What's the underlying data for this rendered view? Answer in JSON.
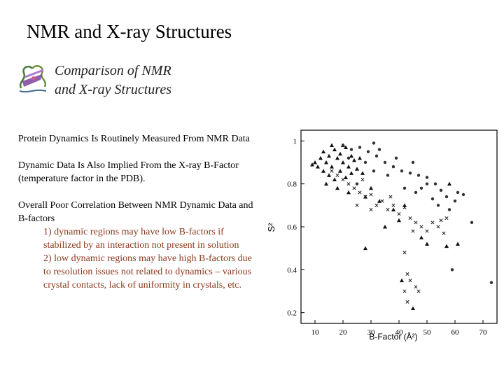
{
  "slide": {
    "title": "NMR and X-ray Structures",
    "subtitle_line1": "Comparison of NMR",
    "subtitle_line2": "and X-ray Structures",
    "paragraph1": "Protein Dynamics Is Routinely Measured From NMR Data",
    "paragraph2": "Dynamic Data Is Also Implied From the X-ray B-Factor (temperature factor in the PDB).",
    "paragraph3": "Overall Poor Correlation Between NMR Dynamic Data and B-factors",
    "point1": "1) dynamic regions may have low B-factors if stabilized by an interaction not present in solution",
    "point2": "2) low dynamic regions may have high B-factors due to resolution issues not related to dynamics – various crystal contacts, lack of uniformity in crystals, etc.",
    "logo_icon": "protein-ribbon-icon",
    "accent_color": "#8b3a1e"
  },
  "chart_data": {
    "type": "scatter",
    "title": "",
    "xlabel": "B-Factor (Å²)",
    "ylabel": "S²",
    "xlim": [
      5,
      75
    ],
    "ylim": [
      0.15,
      1.05
    ],
    "xticks": [
      "10",
      "20",
      "30",
      "40",
      "50",
      "60",
      "70"
    ],
    "yticks": [
      "0.2",
      "0.4",
      "0.6",
      "0.8",
      "1"
    ],
    "series": [
      {
        "marker": "triangle",
        "points": [
          [
            9,
            0.89
          ],
          [
            10,
            0.9
          ],
          [
            11,
            0.88
          ],
          [
            12,
            0.92
          ],
          [
            13,
            0.95
          ],
          [
            14,
            0.9
          ],
          [
            15,
            0.93
          ],
          [
            16,
            0.88
          ],
          [
            17,
            0.96
          ],
          [
            18,
            0.92
          ],
          [
            19,
            0.94
          ],
          [
            20,
            0.9
          ],
          [
            21,
            0.97
          ],
          [
            22,
            0.88
          ],
          [
            23,
            0.93
          ],
          [
            13,
            0.86
          ],
          [
            15,
            0.84
          ],
          [
            17,
            0.82
          ],
          [
            19,
            0.86
          ],
          [
            21,
            0.83
          ],
          [
            23,
            0.85
          ],
          [
            25,
            0.87
          ],
          [
            16,
            0.98
          ],
          [
            20,
            0.98
          ],
          [
            24,
            0.91
          ],
          [
            27,
            0.85
          ],
          [
            30,
            0.78
          ],
          [
            33,
            0.72
          ],
          [
            38,
            0.68
          ],
          [
            42,
            0.7
          ],
          [
            18,
            0.78
          ],
          [
            22,
            0.76
          ],
          [
            28,
            0.74
          ],
          [
            35,
            0.6
          ],
          [
            40,
            0.63
          ],
          [
            48,
            0.55
          ],
          [
            50,
            0.52
          ],
          [
            57,
            0.51
          ],
          [
            28,
            0.5
          ],
          [
            41,
            0.35
          ],
          [
            45,
            0.22
          ],
          [
            61,
            0.52
          ],
          [
            58,
            0.8
          ],
          [
            14,
            0.8
          ],
          [
            26,
            0.92
          ]
        ]
      },
      {
        "marker": "circle",
        "points": [
          [
            20,
            0.98
          ],
          [
            23,
            0.96
          ],
          [
            26,
            0.97
          ],
          [
            29,
            0.95
          ],
          [
            32,
            0.93
          ],
          [
            35,
            0.9
          ],
          [
            38,
            0.88
          ],
          [
            41,
            0.86
          ],
          [
            44,
            0.85
          ],
          [
            47,
            0.84
          ],
          [
            50,
            0.83
          ],
          [
            53,
            0.8
          ],
          [
            55,
            0.77
          ],
          [
            57,
            0.74
          ],
          [
            60,
            0.72
          ],
          [
            63,
            0.75
          ],
          [
            22,
            0.92
          ],
          [
            28,
            0.9
          ],
          [
            31,
            0.86
          ],
          [
            36,
            0.84
          ],
          [
            42,
            0.78
          ],
          [
            46,
            0.76
          ],
          [
            52,
            0.73
          ],
          [
            58,
            0.68
          ],
          [
            33,
            0.96
          ],
          [
            39,
            0.92
          ],
          [
            45,
            0.9
          ],
          [
            48,
            0.78
          ],
          [
            54,
            0.7
          ],
          [
            61,
            0.76
          ],
          [
            66,
            0.62
          ],
          [
            59,
            0.4
          ],
          [
            73,
            0.34
          ],
          [
            50,
            0.8
          ],
          [
            25,
            0.8
          ],
          [
            31,
            0.99
          ]
        ]
      },
      {
        "marker": "cross",
        "points": [
          [
            16,
            0.86
          ],
          [
            18,
            0.84
          ],
          [
            20,
            0.82
          ],
          [
            22,
            0.8
          ],
          [
            24,
            0.78
          ],
          [
            26,
            0.76
          ],
          [
            28,
            0.74
          ],
          [
            30,
            0.75
          ],
          [
            32,
            0.7
          ],
          [
            34,
            0.72
          ],
          [
            36,
            0.68
          ],
          [
            38,
            0.7
          ],
          [
            40,
            0.66
          ],
          [
            42,
            0.69
          ],
          [
            44,
            0.64
          ],
          [
            46,
            0.62
          ],
          [
            48,
            0.6
          ],
          [
            50,
            0.58
          ],
          [
            52,
            0.62
          ],
          [
            54,
            0.6
          ],
          [
            56,
            0.57
          ],
          [
            25,
            0.7
          ],
          [
            30,
            0.68
          ],
          [
            45,
            0.58
          ],
          [
            42,
            0.48
          ],
          [
            43,
            0.38
          ],
          [
            44,
            0.35
          ],
          [
            46,
            0.32
          ],
          [
            47,
            0.3
          ],
          [
            42,
            0.3
          ],
          [
            43,
            0.25
          ],
          [
            55,
            0.63
          ],
          [
            57,
            0.64
          ],
          [
            37,
            0.74
          ],
          [
            27,
            0.82
          ]
        ]
      }
    ]
  }
}
